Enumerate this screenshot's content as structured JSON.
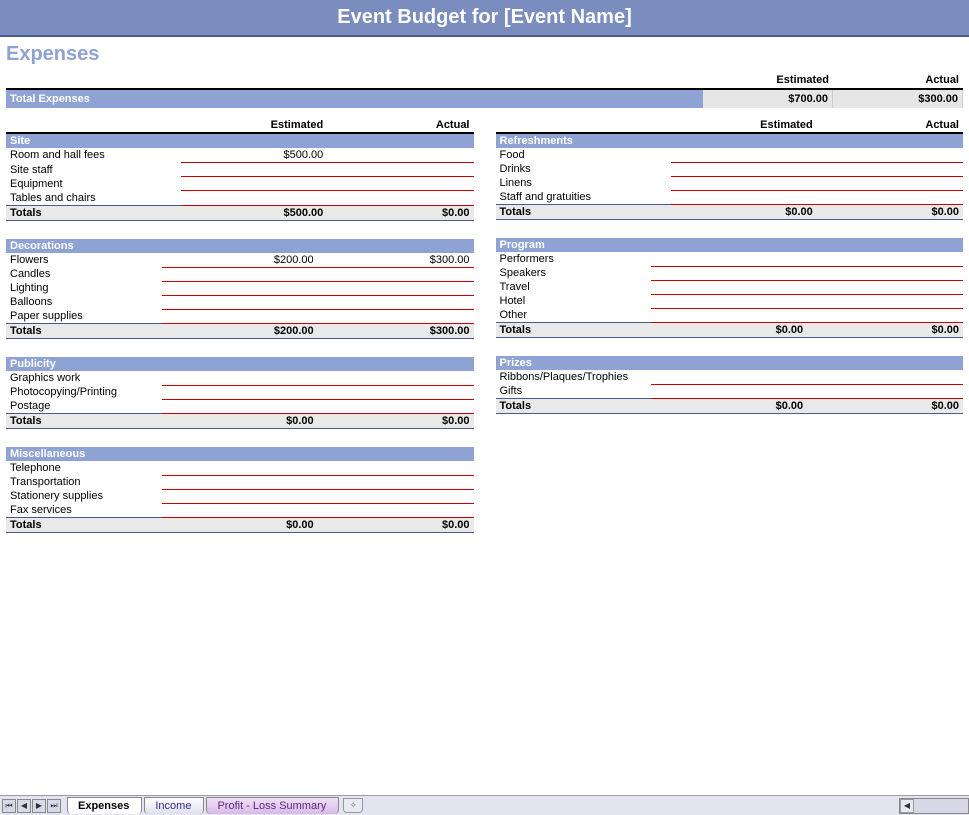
{
  "title": "Event Budget for [Event Name]",
  "section_title": "Expenses",
  "colors": {
    "header_bg": "#7b8cbf",
    "category_bg": "#8fa2d4",
    "row_underline": "#cc0000",
    "totals_bg": "#e9e9e9",
    "grand_val_bg": "#e6e6e6",
    "section_title_color": "#8fa2d4"
  },
  "column_headers": {
    "estimated": "Estimated",
    "actual": "Actual"
  },
  "grand_total": {
    "label": "Total Expenses",
    "estimated": "$700.00",
    "actual": "$300.00"
  },
  "totals_label": "Totals",
  "left_blocks": [
    {
      "name": "Site",
      "rows": [
        {
          "label": "Room and hall fees",
          "estimated": "$500.00",
          "actual": ""
        },
        {
          "label": "Site staff",
          "estimated": "",
          "actual": ""
        },
        {
          "label": "Equipment",
          "estimated": "",
          "actual": ""
        },
        {
          "label": "Tables and chairs",
          "estimated": "",
          "actual": ""
        }
      ],
      "totals": {
        "estimated": "$500.00",
        "actual": "$0.00"
      }
    },
    {
      "name": "Decorations",
      "rows": [
        {
          "label": "Flowers",
          "estimated": "$200.00",
          "actual": "$300.00"
        },
        {
          "label": "Candles",
          "estimated": "",
          "actual": ""
        },
        {
          "label": "Lighting",
          "estimated": "",
          "actual": ""
        },
        {
          "label": "Balloons",
          "estimated": "",
          "actual": ""
        },
        {
          "label": "Paper supplies",
          "estimated": "",
          "actual": ""
        }
      ],
      "totals": {
        "estimated": "$200.00",
        "actual": "$300.00"
      }
    },
    {
      "name": "Publicity",
      "rows": [
        {
          "label": "Graphics work",
          "estimated": "",
          "actual": ""
        },
        {
          "label": "Photocopying/Printing",
          "estimated": "",
          "actual": ""
        },
        {
          "label": "Postage",
          "estimated": "",
          "actual": ""
        }
      ],
      "totals": {
        "estimated": "$0.00",
        "actual": "$0.00"
      }
    },
    {
      "name": "Miscellaneous",
      "rows": [
        {
          "label": "Telephone",
          "estimated": "",
          "actual": ""
        },
        {
          "label": "Transportation",
          "estimated": "",
          "actual": ""
        },
        {
          "label": "Stationery supplies",
          "estimated": "",
          "actual": ""
        },
        {
          "label": "Fax services",
          "estimated": "",
          "actual": ""
        }
      ],
      "totals": {
        "estimated": "$0.00",
        "actual": "$0.00"
      }
    }
  ],
  "right_blocks": [
    {
      "name": "Refreshments",
      "rows": [
        {
          "label": "Food",
          "estimated": "",
          "actual": ""
        },
        {
          "label": "Drinks",
          "estimated": "",
          "actual": ""
        },
        {
          "label": "Linens",
          "estimated": "",
          "actual": ""
        },
        {
          "label": "Staff and gratuities",
          "estimated": "",
          "actual": ""
        }
      ],
      "totals": {
        "estimated": "$0.00",
        "actual": "$0.00"
      }
    },
    {
      "name": "Program",
      "rows": [
        {
          "label": "Performers",
          "estimated": "",
          "actual": ""
        },
        {
          "label": "Speakers",
          "estimated": "",
          "actual": ""
        },
        {
          "label": "Travel",
          "estimated": "",
          "actual": ""
        },
        {
          "label": "Hotel",
          "estimated": "",
          "actual": ""
        },
        {
          "label": "Other",
          "estimated": "",
          "actual": ""
        }
      ],
      "totals": {
        "estimated": "$0.00",
        "actual": "$0.00"
      }
    },
    {
      "name": "Prizes",
      "rows": [
        {
          "label": "Ribbons/Plaques/Trophies",
          "estimated": "",
          "actual": ""
        },
        {
          "label": "Gifts",
          "estimated": "",
          "actual": ""
        }
      ],
      "totals": {
        "estimated": "$0.00",
        "actual": "$0.00"
      }
    }
  ],
  "tabs": {
    "active": "Expenses",
    "others": [
      "Income",
      "Profit - Loss Summary"
    ]
  }
}
